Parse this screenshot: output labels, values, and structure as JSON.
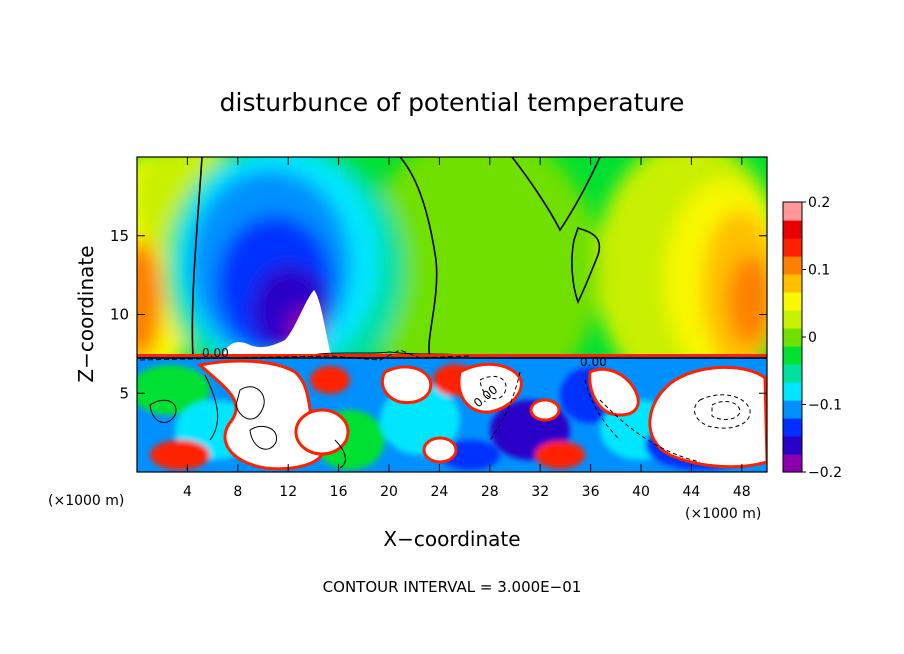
{
  "chart_data": {
    "type": "heatmap",
    "title": "disturbunce of potential temperature",
    "xlabel": "X−coordinate",
    "ylabel": "Z−coordinate",
    "x_unit_label": "(×1000 m)",
    "xlim": [
      0,
      50
    ],
    "ylim": [
      0,
      20
    ],
    "x_ticks": [
      4,
      8,
      12,
      16,
      20,
      24,
      28,
      32,
      36,
      40,
      44,
      48
    ],
    "y_ticks": [
      5,
      10,
      15
    ],
    "colorbar": {
      "min": -0.2,
      "max": 0.2,
      "tick_values": [
        0.2,
        0.1,
        0,
        -0.1,
        -0.2
      ],
      "tick_labels": [
        "0.2",
        "0.1",
        "0",
        "−0.1",
        "−0.2"
      ],
      "colors": [
        "#8a00b0",
        "#2a00c8",
        "#0030ff",
        "#0090ff",
        "#00e6ff",
        "#00e0a0",
        "#00e030",
        "#70e000",
        "#c8f000",
        "#f8f800",
        "#ffc000",
        "#ff8000",
        "#ff2000",
        "#e80000",
        "#ff9898"
      ]
    },
    "contour_label": "0.00",
    "annotation": "CONTOUR INTERVAL = 3.000E−01"
  }
}
